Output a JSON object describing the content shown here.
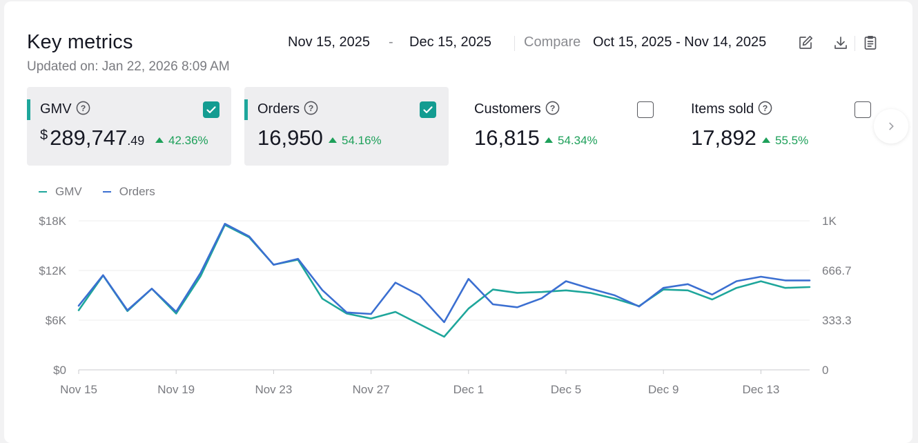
{
  "header": {
    "title": "Key metrics",
    "updated": "Updated on: Jan 22, 2026 8:09 AM",
    "date_start": "Nov 15, 2025",
    "date_dash": "-",
    "date_end": "Dec 15, 2025",
    "compare_label": "Compare",
    "compare_range": "Oct 15, 2025 - Nov 14, 2025",
    "icons": [
      "edit-icon",
      "download-icon",
      "clipboard-icon"
    ]
  },
  "metrics": [
    {
      "name": "GMV",
      "currency": "$",
      "value": "289,747",
      "cents": ".49",
      "change": "42.36%",
      "selected": true
    },
    {
      "name": "Orders",
      "currency": "",
      "value": "16,950",
      "cents": "",
      "change": "54.16%",
      "selected": true
    },
    {
      "name": "Customers",
      "currency": "",
      "value": "16,815",
      "cents": "",
      "change": "54.34%",
      "selected": false
    },
    {
      "name": "Items sold",
      "currency": "",
      "value": "17,892",
      "cents": "",
      "change": "55.5%",
      "selected": false
    }
  ],
  "colors": {
    "gmv": "#1ea69b",
    "orders": "#3b6fd1",
    "positive": "#1ea05a",
    "checkbox": "#139c91"
  },
  "chart_data": {
    "type": "line",
    "legend": [
      "GMV",
      "Orders"
    ],
    "legend_position": "top-left",
    "grid": true,
    "x": [
      "Nov 15",
      "Nov 16",
      "Nov 17",
      "Nov 18",
      "Nov 19",
      "Nov 20",
      "Nov 21",
      "Nov 22",
      "Nov 23",
      "Nov 24",
      "Nov 25",
      "Nov 26",
      "Nov 27",
      "Nov 28",
      "Nov 29",
      "Nov 30",
      "Dec 1",
      "Dec 2",
      "Dec 3",
      "Dec 4",
      "Dec 5",
      "Dec 6",
      "Dec 7",
      "Dec 8",
      "Dec 9",
      "Dec 10",
      "Dec 11",
      "Dec 12",
      "Dec 13",
      "Dec 14",
      "Dec 15"
    ],
    "x_tick_labels": [
      "Nov 15",
      "Nov 19",
      "Nov 23",
      "Nov 27",
      "Dec 1",
      "Dec 5",
      "Dec 9",
      "Dec 13"
    ],
    "y_left": {
      "ticks": [
        "$0",
        "$6K",
        "$12K",
        "$18K"
      ],
      "range": [
        0,
        18000
      ]
    },
    "y_right": {
      "ticks": [
        "0",
        "333.3",
        "666.7",
        "1K"
      ],
      "range": [
        0,
        1000
      ]
    },
    "series": [
      {
        "name": "GMV",
        "axis": "left",
        "values": [
          7200,
          11400,
          7100,
          9800,
          6800,
          11300,
          17500,
          16000,
          12700,
          13300,
          8600,
          6800,
          6200,
          7000,
          5500,
          4000,
          7400,
          9700,
          9300,
          9400,
          9600,
          9300,
          8600,
          7700,
          9700,
          9600,
          8500,
          9900,
          10700,
          9900,
          10000
        ]
      },
      {
        "name": "Orders",
        "axis": "right",
        "values": [
          430,
          635,
          400,
          545,
          390,
          650,
          980,
          895,
          705,
          745,
          535,
          385,
          375,
          585,
          500,
          320,
          610,
          440,
          420,
          480,
          595,
          545,
          500,
          425,
          550,
          575,
          505,
          595,
          625,
          600,
          600
        ]
      }
    ]
  }
}
